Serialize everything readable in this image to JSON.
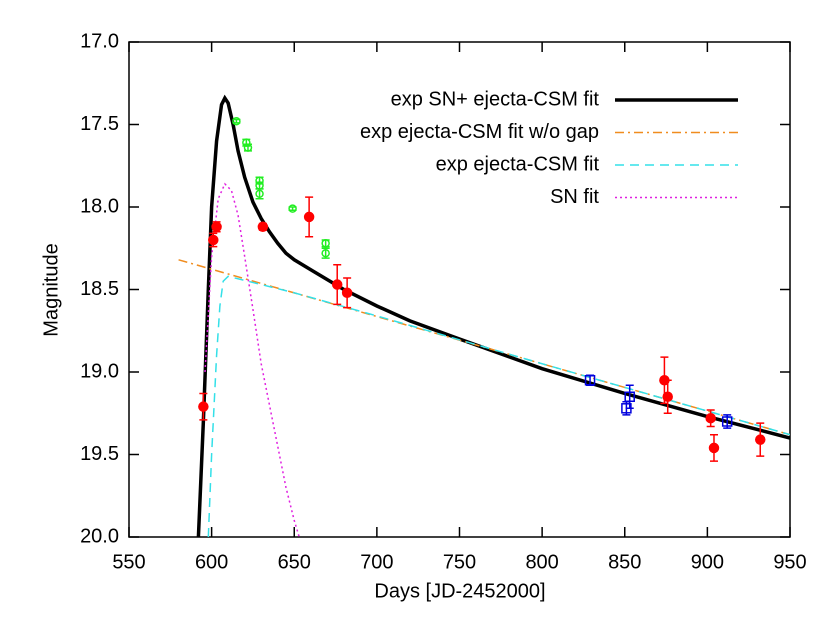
{
  "chart_data": {
    "type": "line",
    "x_label": "Days [JD-2452000]",
    "y_label": "Magnitude",
    "xlim": [
      550,
      950
    ],
    "ylim": [
      20.0,
      17.0
    ],
    "y_inverted": true,
    "xticks": [
      550,
      600,
      650,
      700,
      750,
      800,
      850,
      900,
      950
    ],
    "yticks": [
      {
        "value": 17.0,
        "label": "17.0"
      },
      {
        "value": 17.5,
        "label": "17.5"
      },
      {
        "value": 18.0,
        "label": "18.0"
      },
      {
        "value": 18.5,
        "label": "18.5"
      },
      {
        "value": 19.0,
        "label": "19.0"
      },
      {
        "value": 19.5,
        "label": "19.5"
      },
      {
        "value": 20.0,
        "label": "20.0"
      }
    ],
    "legend": "upper right",
    "series": [
      {
        "name": "exp SN+ ejecta-CSM fit",
        "color": "#000000",
        "dash": "solid",
        "line_width": 3.5,
        "x": [
          592,
          595,
          598,
          600,
          603,
          606,
          608,
          610,
          613,
          616,
          620,
          625,
          630,
          635,
          640,
          645,
          650,
          660,
          670,
          680,
          700,
          720,
          750,
          800,
          850,
          900,
          950
        ],
        "values": [
          20.0,
          19.3,
          18.5,
          18.0,
          17.6,
          17.38,
          17.34,
          17.37,
          17.5,
          17.66,
          17.82,
          17.97,
          18.07,
          18.15,
          18.22,
          18.28,
          18.32,
          18.38,
          18.44,
          18.5,
          18.6,
          18.69,
          18.8,
          18.98,
          19.13,
          19.27,
          19.4
        ]
      },
      {
        "name": "exp ejecta-CSM fit w/o gap",
        "color": "#f08c1e",
        "dash": "dashdot",
        "line_width": 1.5,
        "x": [
          580,
          950
        ],
        "values": [
          18.32,
          19.38
        ]
      },
      {
        "name": "exp ejecta-CSM fit",
        "color": "#33e0e8",
        "dash": "dash",
        "line_width": 1.5,
        "x": [
          598,
          600,
          603,
          605,
          607,
          610,
          650,
          700,
          800,
          950
        ],
        "values": [
          20.0,
          19.5,
          18.9,
          18.6,
          18.45,
          18.42,
          18.52,
          18.66,
          18.95,
          19.38
        ]
      },
      {
        "name": "SN fit",
        "color": "#e020e0",
        "dash": "dot",
        "line_width": 1.5,
        "x": [
          596,
          600,
          604,
          608,
          612,
          616,
          620,
          625,
          630,
          635,
          640,
          645,
          650,
          653
        ],
        "values": [
          19.0,
          18.3,
          17.95,
          17.86,
          17.9,
          18.05,
          18.3,
          18.62,
          18.95,
          19.2,
          19.45,
          19.7,
          19.9,
          20.0
        ]
      }
    ],
    "points": [
      {
        "color": "#ff0000",
        "marker": "circle-filled",
        "x": [
          595,
          601,
          603,
          631,
          659,
          676,
          682,
          874,
          876,
          902,
          904,
          932
        ],
        "values": [
          19.21,
          18.2,
          18.12,
          18.12,
          18.06,
          18.47,
          18.52,
          19.05,
          19.15,
          19.28,
          19.46,
          19.41
        ],
        "errors": [
          0.08,
          0.04,
          0.03,
          0.02,
          0.12,
          0.12,
          0.09,
          0.14,
          0.1,
          0.05,
          0.08,
          0.1
        ]
      },
      {
        "color": "#22ee22",
        "marker": "circle-open",
        "x": [
          615,
          621,
          622,
          629,
          629,
          629,
          649,
          669,
          669
        ],
        "values": [
          17.48,
          17.61,
          17.64,
          17.84,
          17.87,
          17.92,
          18.01,
          18.22,
          18.28
        ],
        "errors": [
          0.01,
          0.02,
          0.02,
          0.02,
          0.02,
          0.03,
          0.01,
          0.02,
          0.03
        ]
      },
      {
        "color": "#0000dd",
        "marker": "square-open",
        "x": [
          829,
          851,
          853,
          912
        ],
        "values": [
          19.05,
          19.22,
          19.15,
          19.3
        ],
        "errors": [
          0.03,
          0.04,
          0.07,
          0.04
        ]
      }
    ]
  }
}
